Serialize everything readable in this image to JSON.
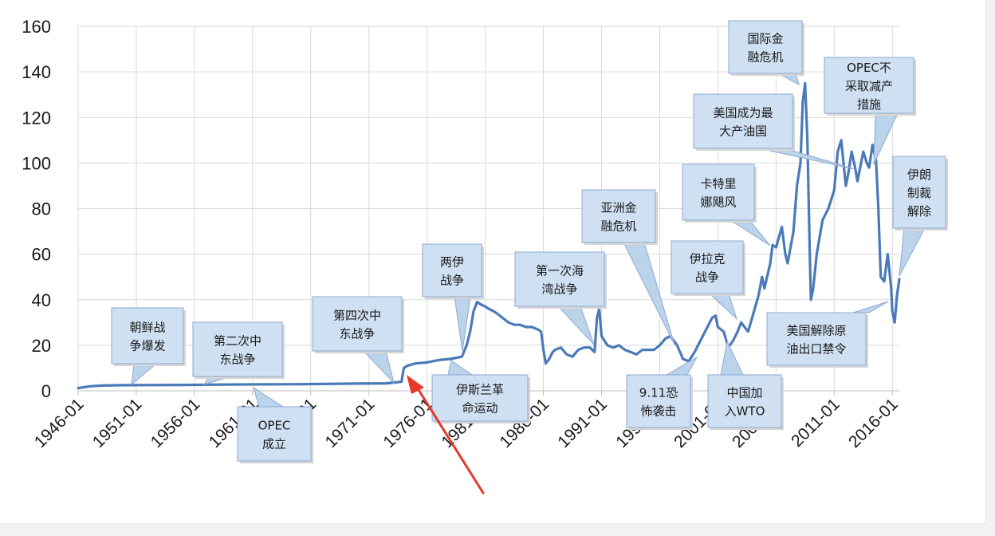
{
  "chart_data": {
    "type": "line",
    "title": "",
    "xlabel": "",
    "ylabel": "",
    "ylim": [
      0,
      160
    ],
    "yticks": [
      0,
      20,
      40,
      60,
      80,
      100,
      120,
      140,
      160
    ],
    "xlim": [
      1946.0,
      2016.6
    ],
    "xticks": [
      "1946-01",
      "1951-01",
      "1956-01",
      "1961-01",
      "1966-01",
      "1971-01",
      "1976-01",
      "1981-01",
      "1986-01",
      "1991-01",
      "1996-01",
      "2001-01",
      "2006-01",
      "2011-01",
      "2016-01"
    ],
    "grid": true,
    "color": "#4a7ab8",
    "series": [
      {
        "x": [
          1946.0,
          1947.0,
          1948.0,
          1950.0,
          1955.0,
          1960.0,
          1965.0,
          1970.0,
          1972.5,
          1973.8,
          1974.0,
          1974.3,
          1975.0,
          1976.0,
          1977.0,
          1978.0,
          1979.0,
          1979.4,
          1979.7,
          1980.0,
          1980.3,
          1980.6,
          1981.0,
          1981.3,
          1981.7,
          1982.0,
          1982.5,
          1983.0,
          1983.5,
          1984.0,
          1984.5,
          1985.0,
          1985.5,
          1985.8,
          1986.0,
          1986.2,
          1986.5,
          1986.8,
          1987.0,
          1987.5,
          1988.0,
          1988.5,
          1989.0,
          1989.5,
          1990.0,
          1990.4,
          1990.6,
          1990.8,
          1991.0,
          1991.5,
          1992.0,
          1992.5,
          1993.0,
          1993.5,
          1994.0,
          1994.5,
          1995.0,
          1995.5,
          1996.0,
          1996.5,
          1996.9,
          1997.5,
          1998.0,
          1998.5,
          1999.0,
          1999.5,
          2000.0,
          2000.5,
          2000.8,
          2001.0,
          2001.5,
          2001.9,
          2002.3,
          2002.7,
          2003.0,
          2003.3,
          2003.6,
          2004.0,
          2004.5,
          2004.8,
          2005.0,
          2005.5,
          2005.7,
          2006.0,
          2006.5,
          2006.8,
          2007.0,
          2007.5,
          2007.8,
          2008.1,
          2008.3,
          2008.5,
          2008.7,
          2008.9,
          2009.0,
          2009.2,
          2009.5,
          2010.0,
          2010.5,
          2011.0,
          2011.3,
          2011.6,
          2012.0,
          2012.2,
          2012.5,
          2012.8,
          2013.0,
          2013.5,
          2013.8,
          2014.0,
          2014.3,
          2014.6,
          2014.8,
          2015.0,
          2015.3,
          2015.6,
          2015.9,
          2016.0,
          2016.2,
          2016.4,
          2016.6
        ],
        "y": [
          1.2,
          2.0,
          2.3,
          2.5,
          2.6,
          2.8,
          2.9,
          3.2,
          3.3,
          4.0,
          10.0,
          11.0,
          12.0,
          12.5,
          13.5,
          14.0,
          15.0,
          20.0,
          26.0,
          35.0,
          39.0,
          38.0,
          37.0,
          36.0,
          35.0,
          34.0,
          32.0,
          30.0,
          29.0,
          29.0,
          28.0,
          28.0,
          27.0,
          26.0,
          18.0,
          12.0,
          14.0,
          17.0,
          18.0,
          19.0,
          16.0,
          15.0,
          18.0,
          19.0,
          19.0,
          17.0,
          32.0,
          36.0,
          24.0,
          20.0,
          19.0,
          20.0,
          18.0,
          17.0,
          16.0,
          18.0,
          18.0,
          18.0,
          20.0,
          23.0,
          24.0,
          20.0,
          14.0,
          13.0,
          17.0,
          22.0,
          27.0,
          32.0,
          33.0,
          28.0,
          26.0,
          19.0,
          22.0,
          26.0,
          30.0,
          28.0,
          26.0,
          33.0,
          42.0,
          50.0,
          45.0,
          56.0,
          64.0,
          63.0,
          72.0,
          60.0,
          56.0,
          70.0,
          90.0,
          100.0,
          127.0,
          135.0,
          110.0,
          60.0,
          40.0,
          45.0,
          60.0,
          75.0,
          80.0,
          88.0,
          105.0,
          110.0,
          90.0,
          95.0,
          105.0,
          98.0,
          92.0,
          105.0,
          100.0,
          98.0,
          108.0,
          101.0,
          80.0,
          50.0,
          48.0,
          60.0,
          45.0,
          35.0,
          30.0,
          42.0,
          49.0
        ]
      }
    ],
    "annotations": [
      {
        "lines": [
          "朝鲜战",
          "争爆发"
        ]
      },
      {
        "lines": [
          "第二次中",
          "东战争"
        ]
      },
      {
        "lines": [
          "OPEC",
          "成立"
        ]
      },
      {
        "lines": [
          "第四次中",
          "东战争"
        ]
      },
      {
        "lines": [
          "两伊",
          "战争"
        ]
      },
      {
        "lines": [
          "伊斯兰革",
          "命运动"
        ]
      },
      {
        "lines": [
          "第一次海",
          "湾战争"
        ]
      },
      {
        "lines": [
          "亚洲金",
          "融危机"
        ]
      },
      {
        "lines": [
          "9.11恐",
          "怖袭击"
        ]
      },
      {
        "lines": [
          "伊拉克",
          "战争"
        ]
      },
      {
        "lines": [
          "中国加",
          "入WTO"
        ]
      },
      {
        "lines": [
          "卡特里",
          "娜飓风"
        ]
      },
      {
        "lines": [
          "美国成为最",
          "大产油国"
        ]
      },
      {
        "lines": [
          "国际金",
          "融危机"
        ]
      },
      {
        "lines": [
          "OPEC不",
          "采取减产",
          "措施"
        ]
      },
      {
        "lines": [
          "伊朗",
          "制裁",
          "解除"
        ]
      },
      {
        "lines": [
          "美国解除原",
          "油出口禁令"
        ]
      }
    ]
  }
}
